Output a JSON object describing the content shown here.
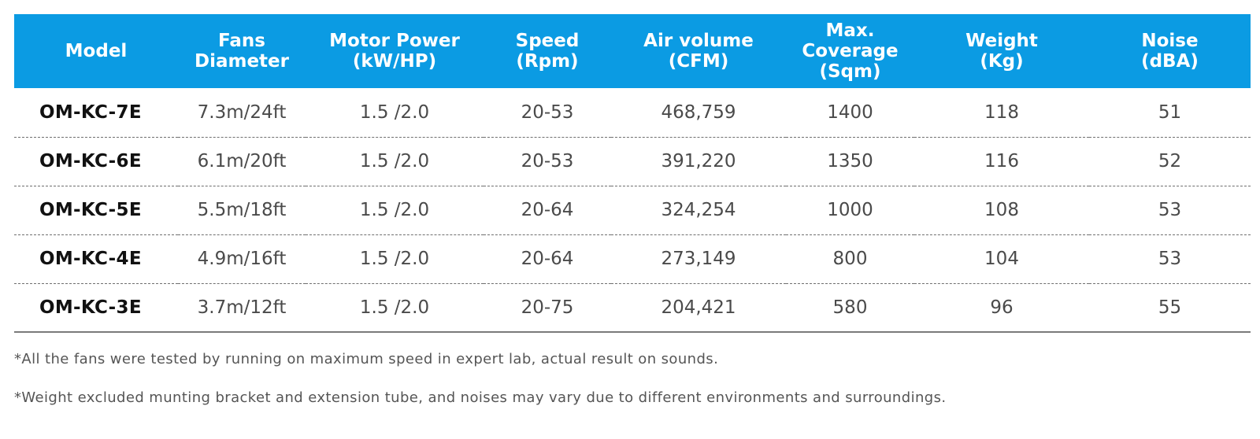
{
  "table": {
    "headers": [
      [
        "Model"
      ],
      [
        "Fans",
        "Diameter"
      ],
      [
        "Motor Power",
        "(kW/HP)"
      ],
      [
        "Speed",
        "(Rpm)"
      ],
      [
        "Air volume",
        "(CFM)"
      ],
      [
        "Max.",
        "Coverage",
        "(Sqm)"
      ],
      [
        "Weight",
        "(Kg)"
      ],
      [
        "Noise",
        "(dBA)"
      ]
    ],
    "rows": [
      [
        "OM-KC-7E",
        "7.3m/24ft",
        "1.5 /2.0",
        "20-53",
        "468,759",
        "1400",
        "118",
        "51"
      ],
      [
        "OM-KC-6E",
        "6.1m/20ft",
        "1.5 /2.0",
        "20-53",
        "391,220",
        "1350",
        "116",
        "52"
      ],
      [
        "OM-KC-5E",
        "5.5m/18ft",
        "1.5 /2.0",
        "20-64",
        "324,254",
        "1000",
        "108",
        "53"
      ],
      [
        "OM-KC-4E",
        "4.9m/16ft",
        "1.5 /2.0",
        "20-64",
        "273,149",
        "800",
        "104",
        "53"
      ],
      [
        "OM-KC-3E",
        "3.7m/12ft",
        "1.5 /2.0",
        "20-75",
        "204,421",
        "580",
        "96",
        "55"
      ]
    ]
  },
  "notes": [
    "*All the fans were tested by running on maximum speed in expert lab, actual result on sounds.",
    "*Weight excluded munting bracket and extension tube, and noises may vary due to different environments and surroundings."
  ],
  "colors": {
    "header_bg": "#0b9be3",
    "header_text": "#ffffff",
    "model_text": "#111111",
    "cell_text": "#4a4a4a"
  }
}
